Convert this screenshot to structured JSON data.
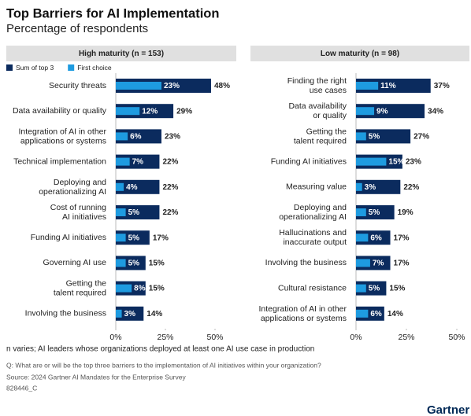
{
  "title": "Top Barriers for AI Implementation",
  "subtitle": "Percentage of respondents",
  "chart_data": [
    {
      "type": "bar",
      "orientation": "horizontal",
      "title": "High maturity (n = 153)",
      "categories": [
        "Security threats",
        "Data availability or quality",
        "Integration of AI in other\napplications or systems",
        "Technical implementation",
        "Deploying and\noperationalizing AI",
        "Cost of running\nAI initiatives",
        "Funding AI initiatives",
        "Governing AI use",
        "Getting the\ntalent required",
        "Involving the business"
      ],
      "series": [
        {
          "name": "Sum of top 3",
          "color": "#0b2b5e",
          "values": [
            48,
            29,
            23,
            22,
            22,
            22,
            17,
            15,
            15,
            14
          ],
          "value_labels": [
            "48%",
            "29%",
            "23%",
            "22%",
            "22%",
            "22%",
            "17%",
            "15%",
            "15%",
            "14%"
          ]
        },
        {
          "name": "First choice",
          "color": "#1e9be0",
          "values": [
            23,
            12,
            6,
            7,
            4,
            5,
            5,
            5,
            8,
            3
          ],
          "value_labels": [
            "23%",
            "12%",
            "6%",
            "7%",
            "4%",
            "5%",
            "5%",
            "5%",
            "8%",
            "3%"
          ]
        }
      ],
      "xlim": [
        0,
        50
      ],
      "xticks": [
        {
          "value": 0,
          "label": "0%"
        },
        {
          "value": 25,
          "label": "25%"
        },
        {
          "value": 50,
          "label": "50%"
        }
      ]
    },
    {
      "type": "bar",
      "orientation": "horizontal",
      "title": "Low maturity (n = 98)",
      "categories": [
        "Finding the right\nuse cases",
        "Data availability\nor quality",
        "Getting the\ntalent required",
        "Funding AI initiatives",
        "Measuring value",
        "Deploying and\noperationalizing AI",
        "Hallucinations and\ninaccurate output",
        "Involving the business",
        "Cultural resistance",
        "Integration of AI in other\napplications or systems"
      ],
      "series": [
        {
          "name": "Sum of top 3",
          "color": "#0b2b5e",
          "values": [
            37,
            34,
            27,
            23,
            22,
            19,
            17,
            17,
            15,
            14
          ],
          "value_labels": [
            "37%",
            "34%",
            "27%",
            "23%",
            "22%",
            "19%",
            "17%",
            "17%",
            "15%",
            "14%"
          ]
        },
        {
          "name": "First choice",
          "color": "#1e9be0",
          "values": [
            11,
            9,
            5,
            15,
            3,
            5,
            6,
            7,
            5,
            6
          ],
          "value_labels": [
            "11%",
            "9%",
            "5%",
            "15%",
            "3%",
            "5%",
            "6%",
            "7%",
            "5%",
            "6%"
          ]
        }
      ],
      "xlim": [
        0,
        50
      ],
      "xticks": [
        {
          "value": 0,
          "label": "0%"
        },
        {
          "value": 25,
          "label": "25%"
        },
        {
          "value": 50,
          "label": "50%"
        }
      ]
    }
  ],
  "notes": [
    "n varies; AI leaders whose organizations deployed at least one AI use case in production",
    "Q: What are or will be the top three barriers to the implementation of AI initiatives within your organization?",
    "Source: 2024 Gartner AI Mandates for the Enterprise Survey",
    "828446_C"
  ],
  "logo": "Gartner"
}
